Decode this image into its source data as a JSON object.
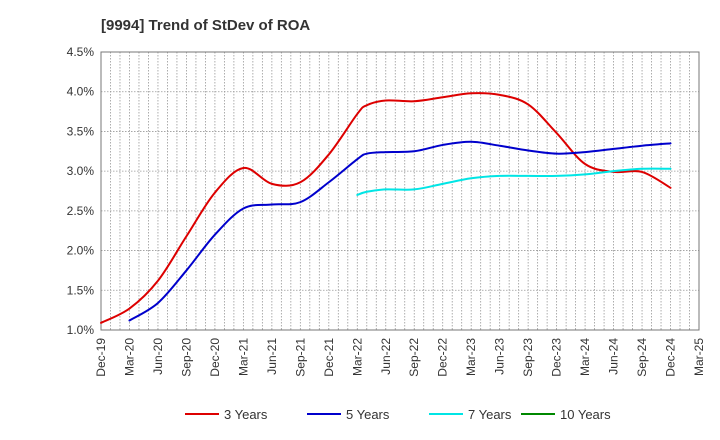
{
  "chart_data": {
    "type": "line",
    "title": "[9994]  Trend of StDev of ROA",
    "xlabel": "",
    "ylabel": "",
    "y_ticks": [
      "1.0%",
      "1.5%",
      "2.0%",
      "2.5%",
      "3.0%",
      "3.5%",
      "4.0%",
      "4.5%"
    ],
    "ylim": [
      1.0,
      4.5
    ],
    "x_ticks": [
      "Dec-19",
      "Mar-20",
      "Jun-20",
      "Sep-20",
      "Dec-20",
      "Mar-21",
      "Jun-21",
      "Sep-21",
      "Dec-21",
      "Mar-22",
      "Jun-22",
      "Sep-22",
      "Dec-22",
      "Mar-23",
      "Jun-23",
      "Sep-23",
      "Dec-23",
      "Mar-24",
      "Jun-24",
      "Sep-24",
      "Dec-24",
      "Mar-25"
    ],
    "grid": true,
    "legend_position": "bottom",
    "series": [
      {
        "name": "3 Years",
        "color": "#dd0000",
        "points": [
          {
            "x": "Dec-19",
            "y": 1.09
          },
          {
            "x": "Mar-20",
            "y": 1.27
          },
          {
            "x": "Jun-20",
            "y": 1.62
          },
          {
            "x": "Sep-20",
            "y": 2.18
          },
          {
            "x": "Dec-20",
            "y": 2.73
          },
          {
            "x": "Mar-21",
            "y": 3.04
          },
          {
            "x": "Jun-21",
            "y": 2.84
          },
          {
            "x": "Sep-21",
            "y": 2.86
          },
          {
            "x": "Dec-21",
            "y": 3.21
          },
          {
            "x": "Mar-22",
            "y": 3.72
          },
          {
            "x": "Apr-22",
            "y": 3.83
          },
          {
            "x": "Jun-22",
            "y": 3.89
          },
          {
            "x": "Sep-22",
            "y": 3.88
          },
          {
            "x": "Dec-22",
            "y": 3.93
          },
          {
            "x": "Mar-23",
            "y": 3.98
          },
          {
            "x": "Jun-23",
            "y": 3.96
          },
          {
            "x": "Sep-23",
            "y": 3.84
          },
          {
            "x": "Dec-23",
            "y": 3.48
          },
          {
            "x": "Mar-24",
            "y": 3.09
          },
          {
            "x": "Jun-24",
            "y": 2.99
          },
          {
            "x": "Sep-24",
            "y": 2.99
          },
          {
            "x": "Dec-24",
            "y": 2.79
          }
        ]
      },
      {
        "name": "5 Years",
        "color": "#0000cc",
        "points": [
          {
            "x": "Mar-20",
            "y": 1.12
          },
          {
            "x": "Jun-20",
            "y": 1.34
          },
          {
            "x": "Sep-20",
            "y": 1.75
          },
          {
            "x": "Dec-20",
            "y": 2.2
          },
          {
            "x": "Mar-21",
            "y": 2.53
          },
          {
            "x": "Jun-21",
            "y": 2.58
          },
          {
            "x": "Sep-21",
            "y": 2.61
          },
          {
            "x": "Dec-21",
            "y": 2.86
          },
          {
            "x": "Mar-22",
            "y": 3.15
          },
          {
            "x": "Apr-22",
            "y": 3.22
          },
          {
            "x": "Jun-22",
            "y": 3.24
          },
          {
            "x": "Sep-22",
            "y": 3.25
          },
          {
            "x": "Dec-22",
            "y": 3.33
          },
          {
            "x": "Mar-23",
            "y": 3.37
          },
          {
            "x": "Jun-23",
            "y": 3.32
          },
          {
            "x": "Sep-23",
            "y": 3.26
          },
          {
            "x": "Dec-23",
            "y": 3.22
          },
          {
            "x": "Mar-24",
            "y": 3.24
          },
          {
            "x": "Jun-24",
            "y": 3.28
          },
          {
            "x": "Sep-24",
            "y": 3.32
          },
          {
            "x": "Dec-24",
            "y": 3.35
          }
        ]
      },
      {
        "name": "7 Years",
        "color": "#00e5e5",
        "points": [
          {
            "x": "Mar-22",
            "y": 2.7
          },
          {
            "x": "Apr-22",
            "y": 2.74
          },
          {
            "x": "Jun-22",
            "y": 2.77
          },
          {
            "x": "Sep-22",
            "y": 2.77
          },
          {
            "x": "Dec-22",
            "y": 2.84
          },
          {
            "x": "Mar-23",
            "y": 2.91
          },
          {
            "x": "Jun-23",
            "y": 2.94
          },
          {
            "x": "Sep-23",
            "y": 2.94
          },
          {
            "x": "Dec-23",
            "y": 2.94
          },
          {
            "x": "Mar-24",
            "y": 2.96
          },
          {
            "x": "Jun-24",
            "y": 3.0
          },
          {
            "x": "Sep-24",
            "y": 3.03
          },
          {
            "x": "Dec-24",
            "y": 3.03
          }
        ]
      },
      {
        "name": "10 Years",
        "color": "#008800",
        "points": []
      }
    ]
  }
}
